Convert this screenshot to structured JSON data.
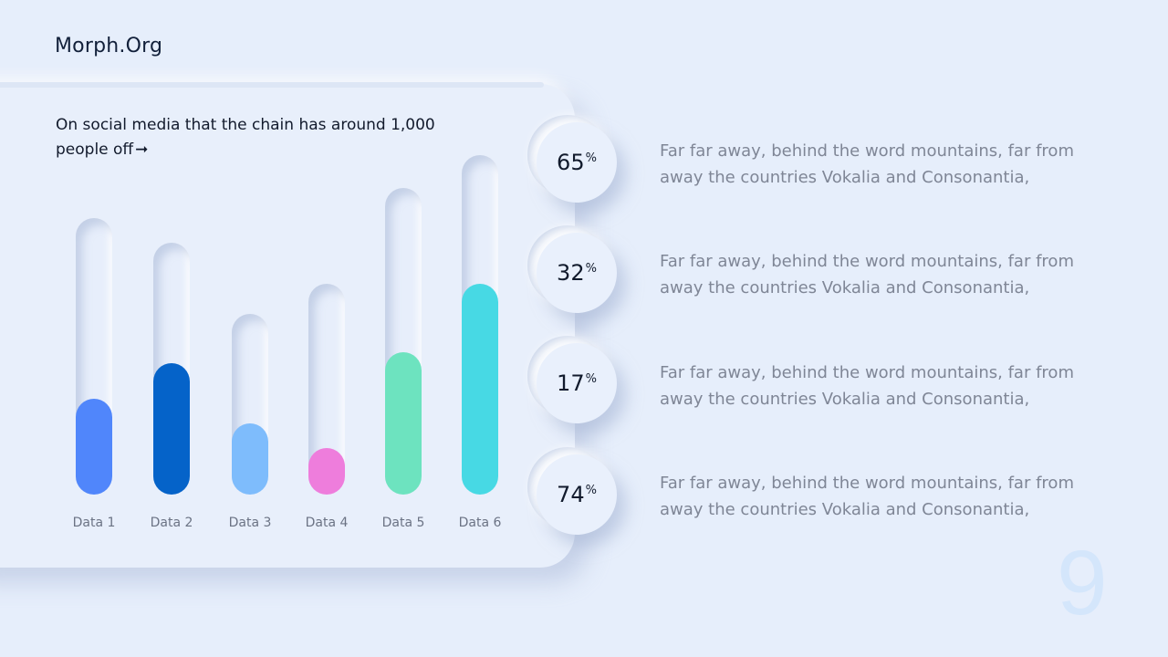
{
  "brand": "Morph.Org",
  "chart_data": {
    "type": "bar",
    "title": "On social media that the chain has around 1,000 people off",
    "title_arrow": "➞",
    "categories": [
      "Data 1",
      "Data 2",
      "Data 3",
      "Data 4",
      "Data 5",
      "Data 6"
    ],
    "values": [
      35,
      48,
      26,
      17,
      52,
      77
    ],
    "track_values": [
      101,
      92,
      66,
      77,
      112,
      124
    ],
    "colors": [
      "#5086fb",
      "#0563c9",
      "#7ebcfc",
      "#ee7ddc",
      "#6de3bf",
      "#47d9e4"
    ]
  },
  "stats": [
    {
      "value": "65",
      "unit": "%",
      "text": "Far far away, behind the word mountains, far from away the countries Vokalia and Consonantia,"
    },
    {
      "value": "32",
      "unit": "%",
      "text": "Far far away, behind the word mountains, far from away the countries Vokalia and Consonantia,"
    },
    {
      "value": "17",
      "unit": "%",
      "text": "Far far away, behind the word mountains, far from away the countries Vokalia and Consonantia,"
    },
    {
      "value": "74",
      "unit": "%",
      "text": "Far far away, behind the word mountains, far from away the countries Vokalia and Consonantia,"
    }
  ],
  "page_number": "9"
}
